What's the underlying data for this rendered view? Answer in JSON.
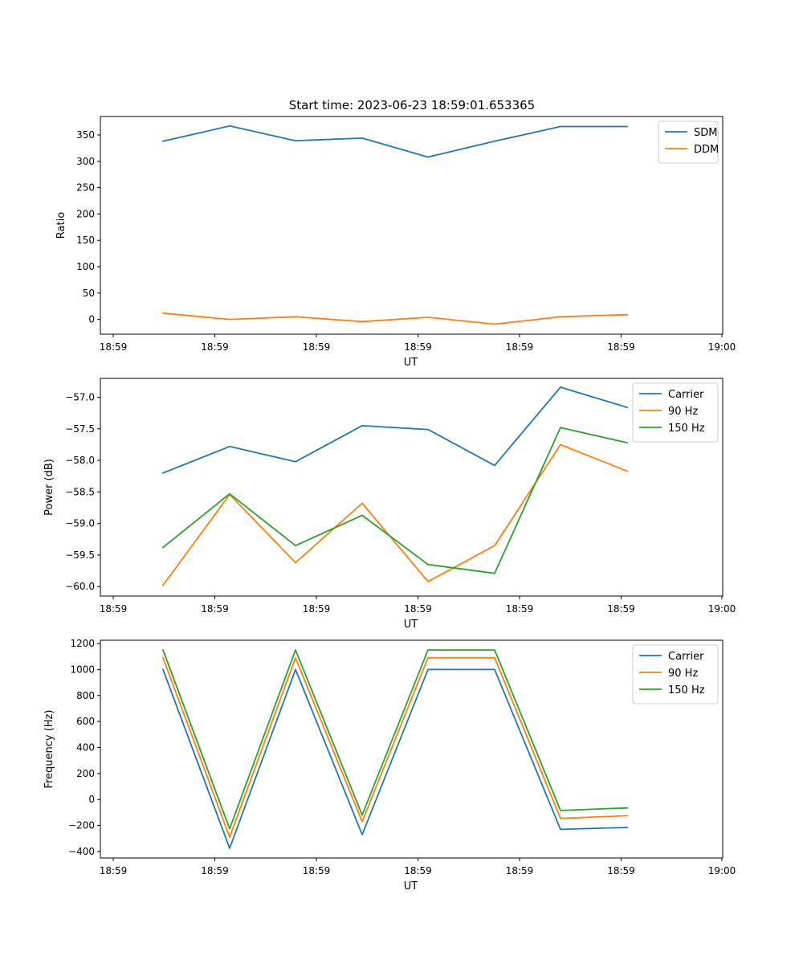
{
  "title": "Start time: 2023-06-23 18:59:01.653365",
  "chart_data": [
    {
      "type": "line",
      "xlabel": "UT",
      "ylabel": "Ratio",
      "x_tick_labels": [
        "18:59",
        "18:59",
        "18:59",
        "18:59",
        "18:59",
        "18:59",
        "19:00"
      ],
      "y_ticks": [
        0,
        50,
        100,
        150,
        200,
        250,
        300,
        350
      ],
      "ylim": [
        -28,
        385
      ],
      "grid": false,
      "legend_position": "top-right",
      "series": [
        {
          "name": "SDM",
          "color": "#1f77b4",
          "values": [
            338,
            367,
            339,
            344,
            308,
            338,
            366,
            366
          ]
        },
        {
          "name": "DDM",
          "color": "#ff7f0e",
          "values": [
            12,
            0,
            5,
            -4,
            4,
            -9,
            5,
            9
          ]
        }
      ]
    },
    {
      "type": "line",
      "xlabel": "UT",
      "ylabel": "Power (dB)",
      "x_tick_labels": [
        "18:59",
        "18:59",
        "18:59",
        "18:59",
        "18:59",
        "18:59",
        "19:00"
      ],
      "y_ticks": [
        -60.0,
        -59.5,
        -59.0,
        -58.5,
        -58.0,
        -57.5,
        -57.0
      ],
      "y_tick_labels": [
        "−60.0",
        "−59.5",
        "−59.0",
        "−58.5",
        "−58.0",
        "−57.5",
        "−57.0"
      ],
      "ylim": [
        -60.15,
        -56.7
      ],
      "grid": false,
      "legend_position": "top-right",
      "series": [
        {
          "name": "Carrier",
          "color": "#1f77b4",
          "values": [
            -58.2,
            -57.78,
            -58.02,
            -57.45,
            -57.51,
            -58.08,
            -56.84,
            -57.16
          ]
        },
        {
          "name": "90 Hz",
          "color": "#ff7f0e",
          "values": [
            -59.98,
            -58.54,
            -59.62,
            -58.68,
            -59.92,
            -59.35,
            -57.75,
            -58.17
          ]
        },
        {
          "name": "150 Hz",
          "color": "#2ca02c",
          "values": [
            -59.38,
            -58.53,
            -59.35,
            -58.87,
            -59.65,
            -59.79,
            -57.48,
            -57.72
          ]
        }
      ]
    },
    {
      "type": "line",
      "xlabel": "UT",
      "ylabel": "Frequency (Hz)",
      "x_tick_labels": [
        "18:59",
        "18:59",
        "18:59",
        "18:59",
        "18:59",
        "18:59",
        "19:00"
      ],
      "y_ticks": [
        -400,
        -200,
        0,
        200,
        400,
        600,
        800,
        1000,
        1200
      ],
      "y_tick_labels": [
        "−400",
        "−200",
        "0",
        "200",
        "400",
        "600",
        "800",
        "1000",
        "1200"
      ],
      "ylim": [
        -450,
        1225
      ],
      "grid": false,
      "legend_position": "top-right",
      "series": [
        {
          "name": "Carrier",
          "color": "#1f77b4",
          "values": [
            1000,
            -375,
            1000,
            -270,
            1000,
            1000,
            -230,
            -215
          ]
        },
        {
          "name": "90 Hz",
          "color": "#ff7f0e",
          "values": [
            1090,
            -290,
            1090,
            -170,
            1090,
            1090,
            -145,
            -125
          ]
        },
        {
          "name": "150 Hz",
          "color": "#2ca02c",
          "values": [
            1150,
            -225,
            1150,
            -120,
            1150,
            1150,
            -85,
            -65
          ]
        }
      ]
    }
  ]
}
